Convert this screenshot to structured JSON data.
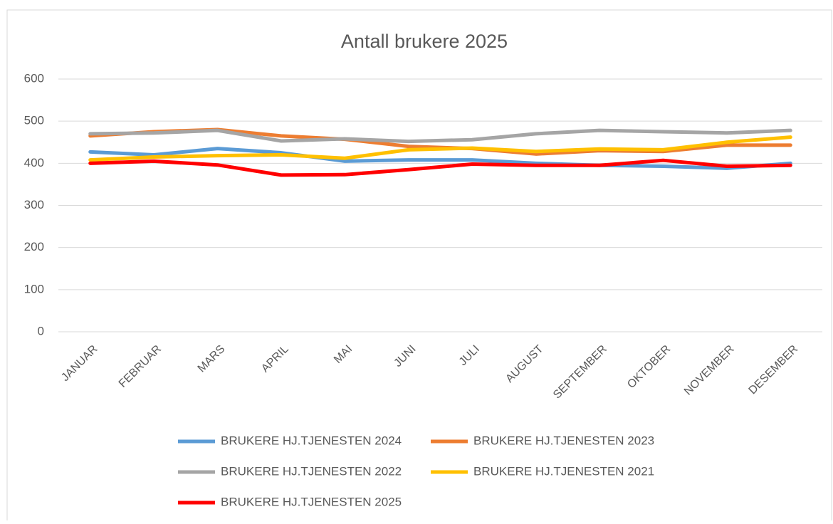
{
  "chart_data": {
    "type": "line",
    "title": "Antall brukere 2025",
    "categories": [
      "JANUAR",
      "FEBRUAR",
      "MARS",
      "APRIL",
      "MAI",
      "JUNI",
      "JULI",
      "AUGUST",
      "SEPTEMBER",
      "OKTOBER",
      "NOVEMBER",
      "DESEMBER"
    ],
    "series": [
      {
        "name": "BRUKERE HJ.TJENESTEN 2024",
        "color": "#5b9bd5",
        "values": [
          427,
          420,
          435,
          425,
          405,
          408,
          408,
          400,
          395,
          393,
          388,
          400
        ]
      },
      {
        "name": "BRUKERE HJ.TJENESTEN 2023",
        "color": "#ed7d31",
        "values": [
          465,
          475,
          480,
          465,
          457,
          440,
          435,
          422,
          430,
          428,
          443,
          443
        ]
      },
      {
        "name": "BRUKERE HJ.TJENESTEN 2022",
        "color": "#a5a5a5",
        "values": [
          470,
          472,
          478,
          453,
          458,
          452,
          456,
          470,
          478,
          475,
          472,
          478
        ]
      },
      {
        "name": "BRUKERE HJ.TJENESTEN 2021",
        "color": "#ffc000",
        "values": [
          408,
          415,
          418,
          420,
          412,
          432,
          436,
          428,
          434,
          432,
          450,
          462
        ]
      },
      {
        "name": "BRUKERE HJ.TJENESTEN 2025",
        "color": "#ff0000",
        "values": [
          400,
          405,
          396,
          372,
          373,
          385,
          398,
          395,
          395,
          407,
          393,
          395
        ]
      }
    ],
    "ylim": [
      0,
      600
    ],
    "yticks": [
      0,
      100,
      200,
      300,
      400,
      500,
      600
    ],
    "grid": true
  }
}
